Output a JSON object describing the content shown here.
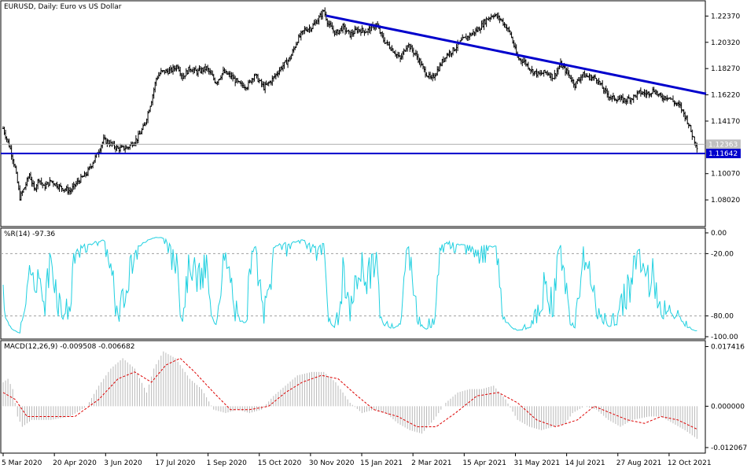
{
  "chart_data": [
    {
      "type": "candlestick",
      "title": "EURUSD, Daily:  Euro vs US Dollar",
      "symbol": "EURUSD",
      "timeframe": "Daily",
      "description": "Euro vs US Dollar",
      "ylim": [
        1.06,
        1.235
      ],
      "yticks": [
        "1.22370",
        "1.20320",
        "1.18270",
        "1.16220",
        "1.14170",
        "1.12363",
        "1.11642",
        "1.10070",
        "1.08020"
      ],
      "current_price": "1.12363",
      "price_line": "1.11642",
      "x_labels": [
        "5 Mar 2020",
        "20 Apr 2020",
        "3 Jun 2020",
        "17 Jul 2020",
        "1 Sep 2020",
        "15 Oct 2020",
        "30 Nov 2020",
        "15 Jan 2021",
        "2 Mar 2021",
        "15 Apr 2021",
        "31 May 2021",
        "14 Jul 2021",
        "27 Aug 2021",
        "12 Oct 2021"
      ],
      "close_path": [
        [
          0,
          1.136
        ],
        [
          6,
          1.12
        ],
        [
          10,
          1.105
        ],
        [
          14,
          1.082
        ],
        [
          18,
          1.09
        ],
        [
          22,
          1.1
        ],
        [
          26,
          1.088
        ],
        [
          30,
          1.097
        ],
        [
          34,
          1.09
        ],
        [
          40,
          1.095
        ],
        [
          48,
          1.09
        ],
        [
          56,
          1.087
        ],
        [
          62,
          1.094
        ],
        [
          70,
          1.101
        ],
        [
          78,
          1.115
        ],
        [
          84,
          1.127
        ],
        [
          90,
          1.124
        ],
        [
          96,
          1.12
        ],
        [
          104,
          1.121
        ],
        [
          112,
          1.128
        ],
        [
          118,
          1.138
        ],
        [
          124,
          1.158
        ],
        [
          128,
          1.175
        ],
        [
          132,
          1.18
        ],
        [
          140,
          1.181
        ],
        [
          146,
          1.185
        ],
        [
          150,
          1.176
        ],
        [
          156,
          1.183
        ],
        [
          162,
          1.18
        ],
        [
          170,
          1.183
        ],
        [
          178,
          1.172
        ],
        [
          184,
          1.18
        ],
        [
          190,
          1.177
        ],
        [
          198,
          1.17
        ],
        [
          204,
          1.169
        ],
        [
          210,
          1.178
        ],
        [
          218,
          1.168
        ],
        [
          224,
          1.173
        ],
        [
          232,
          1.183
        ],
        [
          240,
          1.191
        ],
        [
          246,
          1.205
        ],
        [
          252,
          1.213
        ],
        [
          258,
          1.215
        ],
        [
          264,
          1.222
        ],
        [
          268,
          1.228
        ],
        [
          272,
          1.217
        ],
        [
          278,
          1.21
        ],
        [
          284,
          1.215
        ],
        [
          290,
          1.209
        ],
        [
          296,
          1.213
        ],
        [
          304,
          1.212
        ],
        [
          312,
          1.217
        ],
        [
          318,
          1.205
        ],
        [
          326,
          1.197
        ],
        [
          332,
          1.19
        ],
        [
          338,
          1.202
        ],
        [
          346,
          1.192
        ],
        [
          352,
          1.181
        ],
        [
          358,
          1.174
        ],
        [
          364,
          1.183
        ],
        [
          370,
          1.193
        ],
        [
          376,
          1.197
        ],
        [
          384,
          1.205
        ],
        [
          392,
          1.21
        ],
        [
          398,
          1.214
        ],
        [
          404,
          1.221
        ],
        [
          410,
          1.225
        ],
        [
          416,
          1.221
        ],
        [
          420,
          1.216
        ],
        [
          424,
          1.21
        ],
        [
          430,
          1.191
        ],
        [
          436,
          1.188
        ],
        [
          442,
          1.181
        ],
        [
          448,
          1.178
        ],
        [
          454,
          1.18
        ],
        [
          460,
          1.176
        ],
        [
          466,
          1.186
        ],
        [
          472,
          1.179
        ],
        [
          478,
          1.17
        ],
        [
          484,
          1.178
        ],
        [
          490,
          1.176
        ],
        [
          496,
          1.175
        ],
        [
          502,
          1.166
        ],
        [
          508,
          1.16
        ],
        [
          514,
          1.159
        ],
        [
          520,
          1.158
        ],
        [
          526,
          1.16
        ],
        [
          532,
          1.164
        ],
        [
          538,
          1.163
        ],
        [
          544,
          1.166
        ],
        [
          550,
          1.16
        ],
        [
          556,
          1.161
        ],
        [
          560,
          1.157
        ],
        [
          566,
          1.153
        ],
        [
          572,
          1.142
        ],
        [
          576,
          1.131
        ],
        [
          580,
          1.122
        ]
      ],
      "trendline_start": [
        270,
        1.224
      ],
      "trendline_end": [
        585,
        1.163
      ]
    },
    {
      "type": "line",
      "title": "%R(14) -97.36",
      "indicator": "%R(14)",
      "last_value": "-97.36",
      "ylim": [
        -100,
        0
      ],
      "yticks": [
        "0.00",
        "-20.00",
        "-80.00",
        "-100.00"
      ],
      "levels": [
        -20,
        -80
      ]
    },
    {
      "type": "bar",
      "title": "MACD(12,26,9) -0.009508 -0.006682",
      "indicator": "MACD(12,26,9)",
      "values_text": "-0.009508 -0.006682",
      "ylim": [
        -0.013,
        0.018
      ],
      "yticks": [
        "0.017416",
        "0.000000",
        "-0.012067"
      ],
      "macd_path": [
        [
          0,
          0.007
        ],
        [
          4,
          0.008
        ],
        [
          8,
          0.005
        ],
        [
          12,
          -0.003
        ],
        [
          16,
          -0.006
        ],
        [
          24,
          -0.004
        ],
        [
          40,
          -0.004
        ],
        [
          56,
          -0.003
        ],
        [
          70,
          0.0
        ],
        [
          80,
          0.006
        ],
        [
          90,
          0.011
        ],
        [
          100,
          0.014
        ],
        [
          110,
          0.011
        ],
        [
          120,
          0.004
        ],
        [
          126,
          0.011
        ],
        [
          134,
          0.016
        ],
        [
          144,
          0.014
        ],
        [
          156,
          0.008
        ],
        [
          166,
          0.005
        ],
        [
          176,
          -0.001
        ],
        [
          186,
          -0.002
        ],
        [
          196,
          -0.001
        ],
        [
          206,
          -0.002
        ],
        [
          216,
          -0.001
        ],
        [
          226,
          0.003
        ],
        [
          236,
          0.006
        ],
        [
          246,
          0.009
        ],
        [
          258,
          0.01
        ],
        [
          268,
          0.01
        ],
        [
          278,
          0.007
        ],
        [
          290,
          0.001
        ],
        [
          300,
          -0.002
        ],
        [
          310,
          -0.001
        ],
        [
          320,
          -0.002
        ],
        [
          330,
          -0.005
        ],
        [
          340,
          -0.007
        ],
        [
          350,
          -0.008
        ],
        [
          360,
          -0.004
        ],
        [
          370,
          0.001
        ],
        [
          380,
          0.004
        ],
        [
          390,
          0.005
        ],
        [
          400,
          0.005
        ],
        [
          410,
          0.006
        ],
        [
          420,
          0.002
        ],
        [
          430,
          -0.004
        ],
        [
          440,
          -0.006
        ],
        [
          450,
          -0.007
        ],
        [
          460,
          -0.006
        ],
        [
          470,
          -0.005
        ],
        [
          476,
          -0.002
        ],
        [
          486,
          0.0
        ],
        [
          496,
          -0.001
        ],
        [
          506,
          -0.004
        ],
        [
          516,
          -0.006
        ],
        [
          526,
          -0.004
        ],
        [
          540,
          -0.003
        ],
        [
          550,
          -0.003
        ],
        [
          560,
          -0.005
        ],
        [
          570,
          -0.007
        ],
        [
          580,
          -0.0095
        ]
      ],
      "signal_path": [
        [
          0,
          0.004
        ],
        [
          10,
          0.002
        ],
        [
          20,
          -0.003
        ],
        [
          40,
          -0.003
        ],
        [
          60,
          -0.003
        ],
        [
          80,
          0.002
        ],
        [
          96,
          0.008
        ],
        [
          110,
          0.01
        ],
        [
          124,
          0.007
        ],
        [
          136,
          0.012
        ],
        [
          148,
          0.014
        ],
        [
          160,
          0.01
        ],
        [
          176,
          0.004
        ],
        [
          190,
          -0.001
        ],
        [
          206,
          -0.001
        ],
        [
          222,
          0.0
        ],
        [
          236,
          0.004
        ],
        [
          250,
          0.007
        ],
        [
          266,
          0.009
        ],
        [
          280,
          0.008
        ],
        [
          296,
          0.003
        ],
        [
          310,
          -0.001
        ],
        [
          330,
          -0.003
        ],
        [
          346,
          -0.006
        ],
        [
          362,
          -0.006
        ],
        [
          378,
          -0.002
        ],
        [
          396,
          0.003
        ],
        [
          414,
          0.004
        ],
        [
          430,
          0.001
        ],
        [
          446,
          -0.004
        ],
        [
          462,
          -0.006
        ],
        [
          480,
          -0.004
        ],
        [
          494,
          0.0
        ],
        [
          508,
          -0.002
        ],
        [
          522,
          -0.004
        ],
        [
          536,
          -0.005
        ],
        [
          550,
          -0.003
        ],
        [
          564,
          -0.004
        ],
        [
          580,
          -0.0067
        ]
      ]
    }
  ]
}
